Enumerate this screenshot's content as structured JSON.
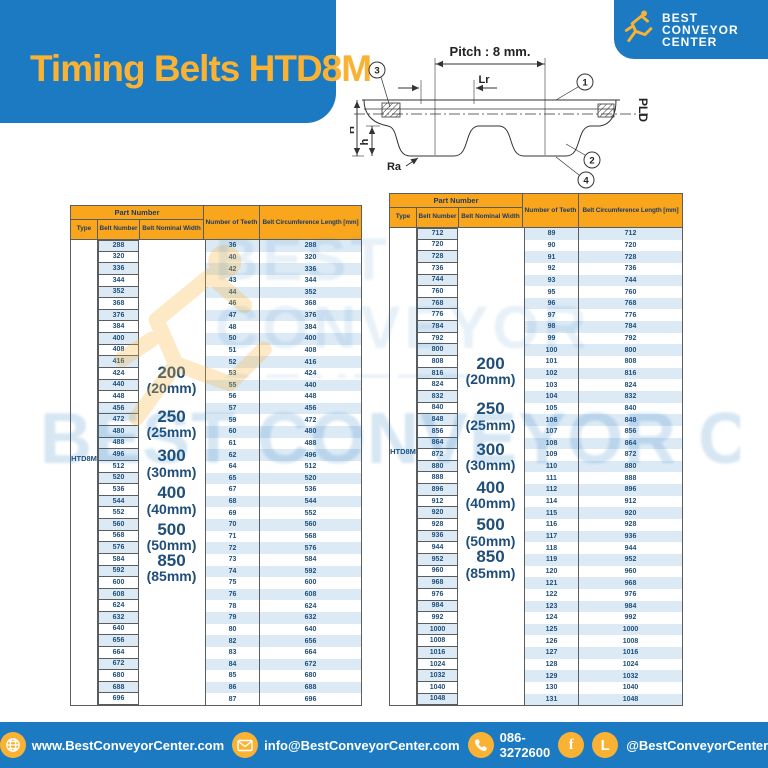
{
  "page": {
    "title": "Timing Belts HTD8M"
  },
  "logo": {
    "line1": "BEST",
    "line2": "CONVEYOR",
    "line3": "CENTER"
  },
  "colors": {
    "brand_blue": "#1B7AC2",
    "brand_yellow": "#F9B233",
    "table_header_orange": "#F9A61C",
    "navy_text": "#1F4E79",
    "row_stripe": "#DCEAF6"
  },
  "diagram": {
    "pitch_label": "Pitch : 8 mm.",
    "lr_label": "Lr",
    "pld_label": "PLD",
    "H_label": "H",
    "h_label": "h",
    "ra_label": "Ra",
    "callouts": [
      "1",
      "2",
      "3",
      "4"
    ]
  },
  "tables": {
    "headers": {
      "part_number": "Part Number",
      "type": "Type",
      "belt_number": "Belt Number",
      "belt_nominal_width": "Belt Nominal Width",
      "number_of_teeth": "Number of Teeth",
      "belt_circumference": "Belt Circumference Length [mm]"
    },
    "type_value": "HTD8M",
    "widths": [
      {
        "size": "200",
        "mm": "(20mm)"
      },
      {
        "size": "250",
        "mm": "(25mm)"
      },
      {
        "size": "300",
        "mm": "(30mm)"
      },
      {
        "size": "400",
        "mm": "(40mm)"
      },
      {
        "size": "500",
        "mm": "(50mm)"
      },
      {
        "size": "850",
        "mm": "(85mm)"
      }
    ],
    "left_rows": [
      [
        288,
        36,
        288
      ],
      [
        320,
        40,
        320
      ],
      [
        336,
        42,
        336
      ],
      [
        344,
        43,
        344
      ],
      [
        352,
        44,
        352
      ],
      [
        368,
        46,
        368
      ],
      [
        376,
        47,
        376
      ],
      [
        384,
        48,
        384
      ],
      [
        400,
        50,
        400
      ],
      [
        408,
        51,
        408
      ],
      [
        416,
        52,
        416
      ],
      [
        424,
        53,
        424
      ],
      [
        440,
        55,
        440
      ],
      [
        448,
        56,
        448
      ],
      [
        456,
        57,
        456
      ],
      [
        472,
        59,
        472
      ],
      [
        480,
        60,
        480
      ],
      [
        488,
        61,
        488
      ],
      [
        496,
        62,
        496
      ],
      [
        512,
        64,
        512
      ],
      [
        520,
        65,
        520
      ],
      [
        536,
        67,
        536
      ],
      [
        544,
        68,
        544
      ],
      [
        552,
        69,
        552
      ],
      [
        560,
        70,
        560
      ],
      [
        568,
        71,
        568
      ],
      [
        576,
        72,
        576
      ],
      [
        584,
        73,
        584
      ],
      [
        592,
        74,
        592
      ],
      [
        600,
        75,
        600
      ],
      [
        608,
        76,
        608
      ],
      [
        624,
        78,
        624
      ],
      [
        632,
        79,
        632
      ],
      [
        640,
        80,
        640
      ],
      [
        656,
        82,
        656
      ],
      [
        664,
        83,
        664
      ],
      [
        672,
        84,
        672
      ],
      [
        680,
        85,
        680
      ],
      [
        688,
        86,
        688
      ],
      [
        696,
        87,
        696
      ]
    ],
    "right_rows": [
      [
        712,
        89,
        712
      ],
      [
        720,
        90,
        720
      ],
      [
        728,
        91,
        728
      ],
      [
        736,
        92,
        736
      ],
      [
        744,
        93,
        744
      ],
      [
        760,
        95,
        760
      ],
      [
        768,
        96,
        768
      ],
      [
        776,
        97,
        776
      ],
      [
        784,
        98,
        784
      ],
      [
        792,
        99,
        792
      ],
      [
        800,
        100,
        800
      ],
      [
        808,
        101,
        808
      ],
      [
        816,
        102,
        816
      ],
      [
        824,
        103,
        824
      ],
      [
        832,
        104,
        832
      ],
      [
        840,
        105,
        840
      ],
      [
        848,
        106,
        848
      ],
      [
        856,
        107,
        856
      ],
      [
        864,
        108,
        864
      ],
      [
        872,
        109,
        872
      ],
      [
        880,
        110,
        880
      ],
      [
        888,
        111,
        888
      ],
      [
        896,
        112,
        896
      ],
      [
        912,
        114,
        912
      ],
      [
        920,
        115,
        920
      ],
      [
        928,
        116,
        928
      ],
      [
        936,
        117,
        936
      ],
      [
        944,
        118,
        944
      ],
      [
        952,
        119,
        952
      ],
      [
        960,
        120,
        960
      ],
      [
        968,
        121,
        968
      ],
      [
        976,
        122,
        976
      ],
      [
        984,
        123,
        984
      ],
      [
        992,
        124,
        992
      ],
      [
        1000,
        125,
        1000
      ],
      [
        1008,
        126,
        1008
      ],
      [
        1016,
        127,
        1016
      ],
      [
        1024,
        128,
        1024
      ],
      [
        1032,
        129,
        1032
      ],
      [
        1040,
        130,
        1040
      ],
      [
        1048,
        131,
        1048
      ]
    ]
  },
  "watermark": {
    "brand_ghost": "BEST CONVEYOR CENTER"
  },
  "footer": {
    "website": "www.BestConveyorCenter.com",
    "email": "info@BestConveyorCenter.com",
    "phone": "086-3272600",
    "social_handle": "@BestConveyorCenter",
    "facebook_glyph": "f",
    "line_glyph": "L"
  }
}
